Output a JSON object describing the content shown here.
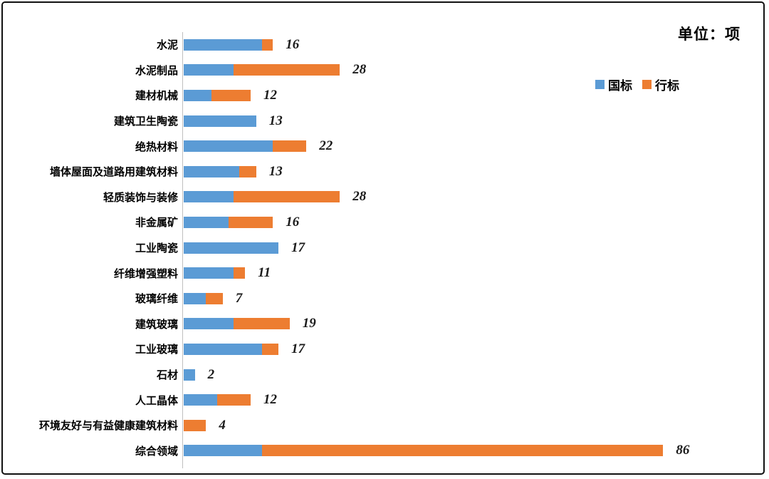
{
  "header": {
    "unit_label": "单位：项"
  },
  "legend": {
    "position": "top-right",
    "items": [
      {
        "label": "国标",
        "color": "#5B9BD5"
      },
      {
        "label": "行标",
        "color": "#ED7D31"
      }
    ]
  },
  "chart_data": {
    "type": "bar",
    "orientation": "horizontal",
    "stacked": true,
    "title": "单位：项",
    "xlabel": "",
    "ylabel": "",
    "xlim": [
      0,
      88
    ],
    "grid": false,
    "axis_line_color": "#BFBFBF",
    "value_label_style": "bold italic serif totals at bar end",
    "categories": [
      "水泥",
      "水泥制品",
      "建材机械",
      "建筑卫生陶瓷",
      "绝热材料",
      "墙体屋面及道路用建筑材料",
      "轻质装饰与装修",
      "非金属矿",
      "工业陶瓷",
      "纤维增强塑料",
      "玻璃纤维",
      "建筑玻璃",
      "工业玻璃",
      "石材",
      "人工晶体",
      "环境友好与有益健康建筑材料",
      "综合领域"
    ],
    "series": [
      {
        "name": "国标",
        "color": "#5B9BD5",
        "values": [
          14,
          9,
          5,
          13,
          16,
          10,
          9,
          8,
          17,
          9,
          4,
          9,
          14,
          2,
          6,
          0,
          14
        ]
      },
      {
        "name": "行标",
        "color": "#ED7D31",
        "values": [
          2,
          19,
          7,
          0,
          6,
          3,
          19,
          8,
          0,
          2,
          3,
          10,
          3,
          0,
          6,
          4,
          72
        ]
      }
    ],
    "totals": [
      16,
      28,
      12,
      13,
      22,
      13,
      28,
      16,
      17,
      11,
      7,
      19,
      17,
      2,
      12,
      4,
      86
    ]
  }
}
